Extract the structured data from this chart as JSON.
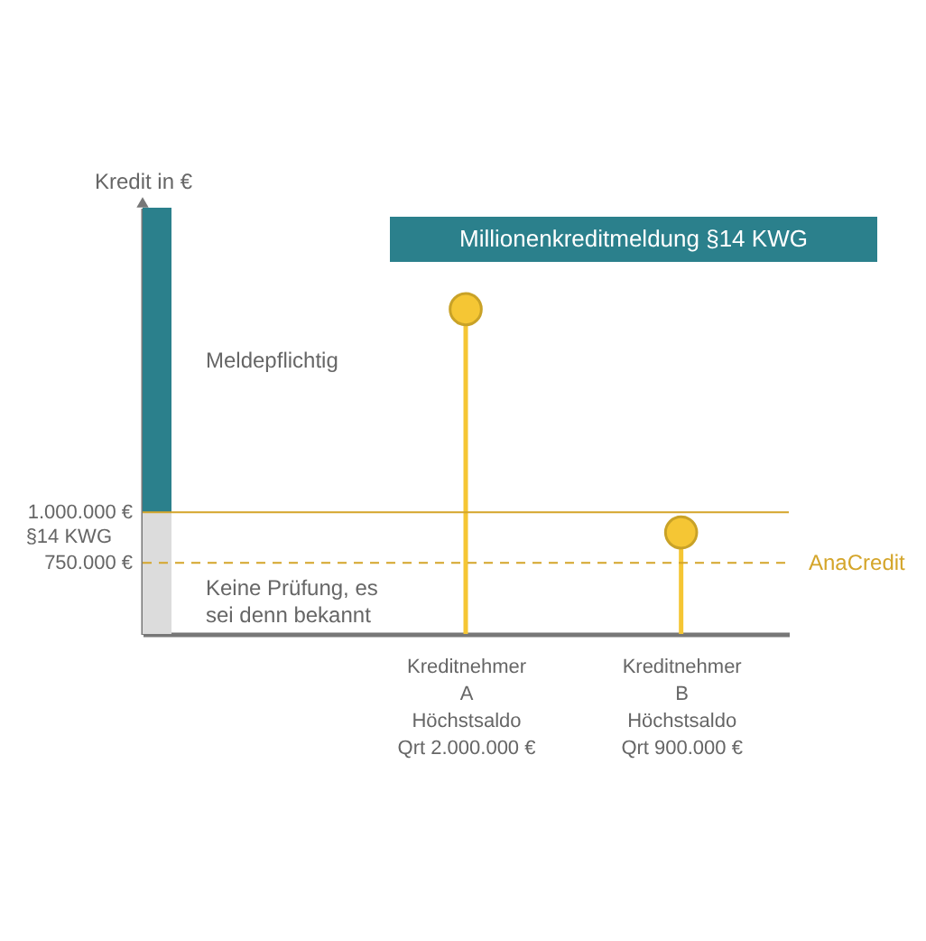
{
  "chart_data": {
    "type": "lollipop",
    "title": "Millionenkreditmeldung §14 KWG",
    "ylabel": "Kredit in €",
    "categories": [
      null,
      "Kreditnehmer\nA\nHöchstsaldo\nQrt 2.000.000 €",
      "Kreditnehmer\nB\nHöchstsaldo\nQrt 900.000 €"
    ],
    "values": [
      null,
      2000000,
      900000
    ],
    "color": "#f5c634",
    "marker": "circle",
    "ylim": [
      400000,
      2500000
    ],
    "yticks": [
      {
        "value": 750000,
        "label": "750.000 €"
      },
      {
        "value": 1000000,
        "label": "1.000.000 €"
      }
    ],
    "ref_lines": [
      {
        "axis": "y",
        "value": 1000000,
        "label": "§14 KWG",
        "color": "#d4a52a"
      },
      {
        "axis": "y",
        "value": 750000,
        "label": "AnaCredit",
        "color": "#d4a52a",
        "line_style": "dashed"
      }
    ],
    "bands": [
      {
        "axis": "y",
        "from": 1000000,
        "to": 2500000,
        "label": "Meldepflichtig",
        "color": "#2b808c"
      },
      {
        "axis": "y",
        "from": 400000,
        "to": 1000000,
        "label": "Keine Prüfung, es sei denn bekannt",
        "color": "#dcdcdc"
      }
    ]
  }
}
